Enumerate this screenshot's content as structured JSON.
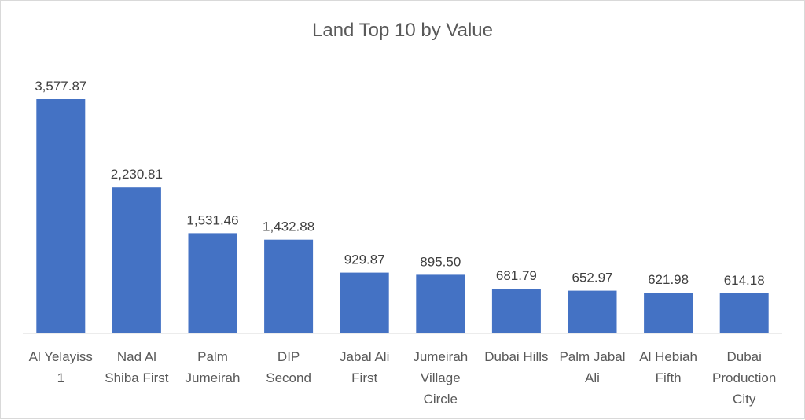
{
  "chart_data": {
    "type": "bar",
    "title": "Land Top 10 by Value",
    "xlabel": "",
    "ylabel": "",
    "categories": [
      [
        "Al Yelayiss",
        "1"
      ],
      [
        "Nad Al",
        "Shiba First"
      ],
      [
        "Palm",
        "Jumeirah"
      ],
      [
        "DIP",
        "Second"
      ],
      [
        "Jabal Ali",
        "First"
      ],
      [
        "Jumeirah",
        "Village",
        "Circle"
      ],
      [
        "Dubai Hills"
      ],
      [
        "Palm Jabal",
        "Ali"
      ],
      [
        "Al Hebiah",
        "Fifth"
      ],
      [
        "Dubai",
        "Production",
        "City"
      ]
    ],
    "values": [
      3577.87,
      2230.81,
      1531.46,
      1432.88,
      929.87,
      895.5,
      681.79,
      652.97,
      621.98,
      614.18
    ],
    "data_labels": [
      "3,577.87",
      "2,230.81",
      "1,531.46",
      "1,432.88",
      "929.87",
      "895.50",
      "681.79",
      "652.97",
      "621.98",
      "614.18"
    ],
    "ylim": [
      0,
      3577.87
    ],
    "grid": false,
    "legend": "none",
    "colors": {
      "bar": "#4472c4",
      "axis": "#d9d9d9"
    }
  }
}
